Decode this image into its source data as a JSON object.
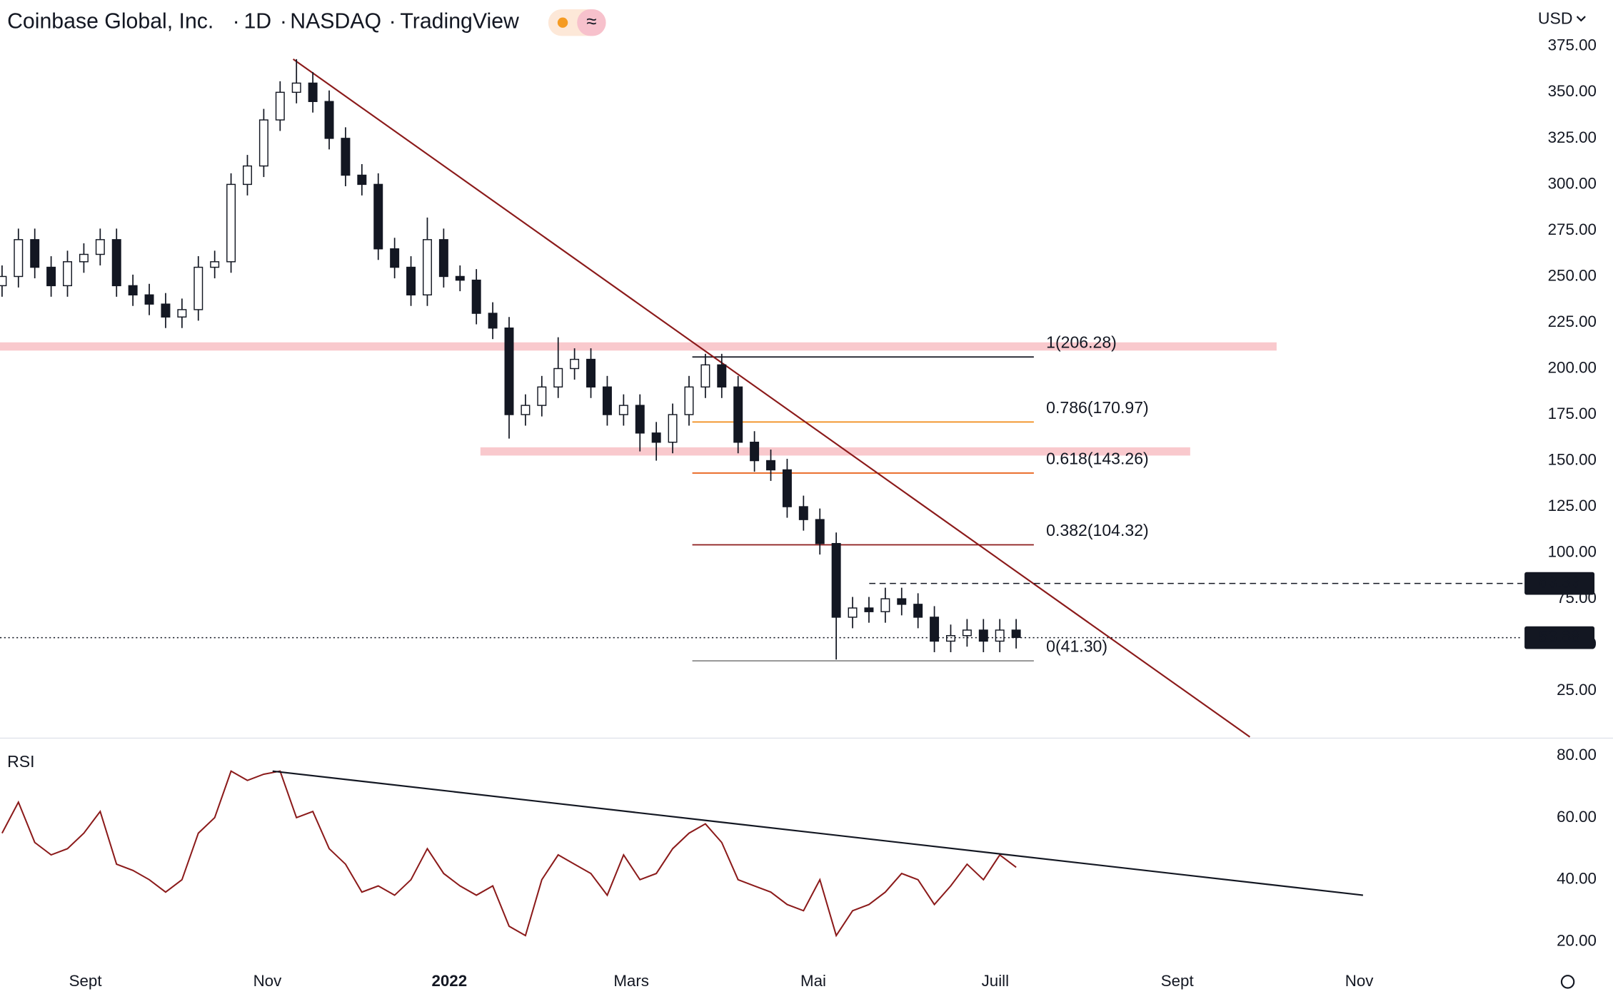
{
  "header": {
    "symbol": "Coinbase Global, Inc.",
    "interval": "1D",
    "exchange": "NASDAQ",
    "source": "TradingView",
    "currency": "USD"
  },
  "x_axis_labels": [
    "Sept",
    "Nov",
    "2022",
    "Mars",
    "Mai",
    "Juill",
    "Sept",
    "Nov"
  ],
  "chart_data": [
    {
      "type": "candlestick",
      "open": [
        245,
        250,
        270,
        255,
        245,
        258,
        262,
        270,
        245,
        240,
        235,
        228,
        232,
        255,
        258,
        300,
        310,
        335,
        350,
        355,
        345,
        325,
        305,
        300,
        265,
        255,
        240,
        270,
        250,
        248,
        230,
        222,
        175,
        180,
        190,
        200,
        205,
        190,
        175,
        180,
        165,
        160,
        175,
        190,
        202,
        190,
        160,
        150,
        145,
        125,
        118,
        105,
        65,
        70,
        68,
        75,
        72,
        65,
        52,
        55,
        58,
        52,
        58
      ],
      "high": [
        256,
        276,
        276,
        261,
        264,
        268,
        276,
        276,
        251,
        246,
        241,
        238,
        261,
        264,
        306,
        316,
        341,
        356,
        368,
        361,
        351,
        331,
        311,
        306,
        271,
        261,
        282,
        276,
        256,
        254,
        236,
        228,
        186,
        196,
        217,
        211,
        211,
        196,
        186,
        186,
        171,
        181,
        196,
        208,
        208,
        196,
        166,
        156,
        151,
        131,
        124,
        111,
        76,
        76,
        81,
        81,
        78,
        71,
        61,
        64,
        64,
        64,
        64
      ],
      "low": [
        239,
        244,
        249,
        239,
        239,
        252,
        256,
        239,
        234,
        229,
        222,
        222,
        226,
        249,
        252,
        294,
        304,
        329,
        344,
        339,
        319,
        299,
        294,
        259,
        249,
        234,
        234,
        244,
        242,
        224,
        216,
        162,
        169,
        174,
        184,
        194,
        184,
        169,
        169,
        155,
        150,
        154,
        169,
        184,
        184,
        154,
        144,
        139,
        119,
        112,
        99,
        42,
        59,
        62,
        62,
        66,
        59,
        46,
        46,
        49,
        46,
        46,
        48
      ],
      "close": [
        250,
        270,
        255,
        245,
        258,
        262,
        270,
        245,
        240,
        235,
        228,
        232,
        255,
        258,
        300,
        310,
        335,
        350,
        355,
        345,
        325,
        305,
        300,
        265,
        255,
        240,
        270,
        250,
        248,
        230,
        222,
        175,
        180,
        190,
        200,
        205,
        190,
        175,
        180,
        165,
        160,
        175,
        190,
        202,
        190,
        160,
        150,
        145,
        125,
        118,
        105,
        65,
        70,
        68,
        75,
        72,
        65,
        52,
        55,
        58,
        52,
        58,
        54
      ],
      "ylim": [
        0,
        400
      ],
      "yticks": [
        {
          "value": 25,
          "label": "25.00"
        },
        {
          "value": 50,
          "label": "50.00"
        },
        {
          "value": 75,
          "label": "75.00"
        },
        {
          "value": 100,
          "label": "100.00"
        },
        {
          "value": 125,
          "label": "125.00"
        },
        {
          "value": 150,
          "label": "150.00"
        },
        {
          "value": 175,
          "label": "175.00"
        },
        {
          "value": 200,
          "label": "200.00"
        },
        {
          "value": 225,
          "label": "225.00"
        },
        {
          "value": 250,
          "label": "250.00"
        },
        {
          "value": 275,
          "label": "275.00"
        },
        {
          "value": 300,
          "label": "300.00"
        },
        {
          "value": 325,
          "label": "325.00"
        },
        {
          "value": 350,
          "label": "350.00"
        },
        {
          "value": 375,
          "label": "375.00"
        }
      ],
      "zones": [
        {
          "value": 212,
          "color": "#f9c9cd"
        },
        {
          "value": 155,
          "color": "#f9c9cd"
        }
      ],
      "fib_levels": [
        {
          "value": 206.28,
          "label": "1(206.28)",
          "color": "#131722"
        },
        {
          "value": 170.97,
          "label": "0.786(170.97)",
          "color": "#f08c1a"
        },
        {
          "value": 143.26,
          "label": "0.618(143.26)",
          "color": "#e65100"
        },
        {
          "value": 104.32,
          "label": "0.382(104.32)",
          "color": "#8b1a1a"
        },
        {
          "value": 41.3,
          "label": "0(41.30)",
          "color": "#8a8a8a"
        }
      ],
      "trendline": {
        "values": [
          368,
          0
        ],
        "color": "#8b1a1a"
      },
      "price_lines": [
        {
          "value": 83.33,
          "style": "dashed"
        },
        {
          "value": 53.88,
          "style": "dotted"
        }
      ]
    },
    {
      "type": "line",
      "title": "RSI",
      "color": "#8b1a1a",
      "values": [
        55,
        65,
        52,
        48,
        50,
        55,
        62,
        45,
        43,
        40,
        36,
        40,
        55,
        60,
        75,
        72,
        74,
        75,
        60,
        62,
        50,
        45,
        36,
        38,
        35,
        40,
        50,
        42,
        38,
        35,
        38,
        25,
        22,
        40,
        48,
        45,
        42,
        35,
        48,
        40,
        42,
        50,
        55,
        58,
        52,
        40,
        38,
        36,
        32,
        30,
        40,
        22,
        30,
        32,
        36,
        42,
        40,
        32,
        38,
        45,
        40,
        48,
        44
      ],
      "ylim": [
        12,
        85
      ],
      "yticks": [
        {
          "value": 20,
          "label": "20.00"
        },
        {
          "value": 40,
          "label": "40.00"
        },
        {
          "value": 60,
          "label": "60.00"
        },
        {
          "value": 80,
          "label": "80.00"
        }
      ],
      "trendline": {
        "values": [
          75,
          35
        ],
        "color": "#131722"
      }
    }
  ]
}
